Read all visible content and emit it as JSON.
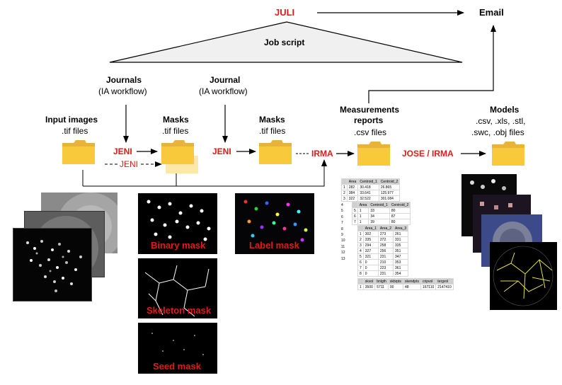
{
  "top": {
    "juli": "JULI",
    "email": "Email",
    "job_script": "Job script"
  },
  "journals": [
    {
      "title": "Journals",
      "subtitle": "(IA workflow)"
    },
    {
      "title": "Journal",
      "subtitle": "(IA workflow)"
    }
  ],
  "stages": [
    {
      "title": "Input images",
      "sub": ".tif files"
    },
    {
      "title": "Masks",
      "sub": ".tif files"
    },
    {
      "title": "Masks",
      "sub": ".tif files"
    },
    {
      "title": "Measurements",
      "title2": "reports",
      "sub": ".csv files"
    },
    {
      "title": "Models",
      "sub": ".csv, .xls, .stl,",
      "sub2": ".swc, .obj files"
    }
  ],
  "tools": {
    "jeni1": "JENI",
    "jeni_dashed": "JENI",
    "jeni2": "JENI",
    "irma": "IRMA",
    "jose_irma": "JOSE / IRMA"
  },
  "masks": {
    "binary": "Binary mask",
    "skeleton": "Skeleton mask",
    "seed": "Seed mask",
    "label": "Label mask"
  },
  "table1": {
    "headers": [
      "",
      "Area",
      "Centroid_1",
      "Centroid_2"
    ],
    "rows": [
      [
        "1",
        "282",
        "30.418",
        "26.865"
      ],
      [
        "2",
        "384",
        "33.641",
        "125.977"
      ],
      [
        "3",
        "322",
        "32.522",
        "301.084"
      ]
    ]
  },
  "table2": {
    "headers": [
      "",
      "Area",
      "Centroid_1",
      "Centroid_2"
    ],
    "rows": [
      [
        "5",
        "1",
        "33",
        "80"
      ],
      [
        "6",
        "1",
        "34",
        "87"
      ],
      [
        "7",
        "1",
        "39",
        "80"
      ]
    ]
  },
  "table3": {
    "headers": [
      "",
      "Area_1",
      "Area_2",
      "Area_3"
    ],
    "rows": [
      [
        "1",
        "302",
        "273",
        "261"
      ],
      [
        "2",
        "335",
        "272",
        "331"
      ],
      [
        "3",
        "294",
        "258",
        "335"
      ],
      [
        "4",
        "327",
        "256",
        "351"
      ],
      [
        "5",
        "321",
        "231",
        "347"
      ],
      [
        "6",
        "0",
        "210",
        "353"
      ],
      [
        "7",
        "0",
        "223",
        "361"
      ],
      [
        "8",
        "0",
        "231",
        "354"
      ]
    ]
  },
  "table3_left": [
    "4",
    "5",
    "6",
    "7",
    "8",
    "9",
    "10",
    "11",
    "12",
    "13"
  ],
  "table4": {
    "headers": [
      "",
      "skvol",
      "bnlgth",
      "skbrpts",
      "skendpts",
      "cripvol",
      "tergvol"
    ],
    "rows": [
      [
        "1",
        "3500",
        "5711",
        "00",
        "48",
        "167110",
        "2147410"
      ]
    ]
  }
}
